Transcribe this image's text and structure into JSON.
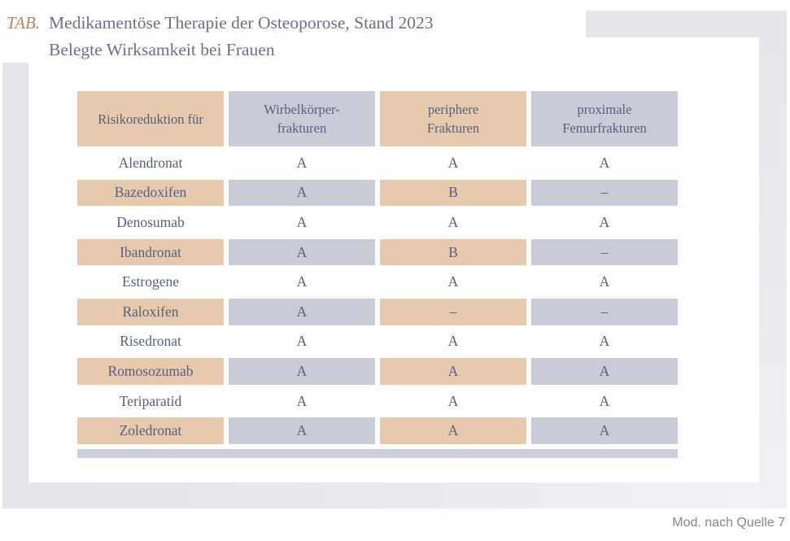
{
  "title": {
    "tag": "TAB.",
    "line1": "Medikamentöse Therapie der Osteoporose, Stand 2023",
    "line2": "Belegte Wirksamkeit bei Frauen"
  },
  "table": {
    "columns": [
      {
        "lines": [
          "Risikoreduktion für"
        ]
      },
      {
        "lines": [
          "Wirbelkörper-",
          "frakturen"
        ]
      },
      {
        "lines": [
          "periphere",
          "Frakturen"
        ]
      },
      {
        "lines": [
          "proximale",
          "Femurfrakturen"
        ]
      }
    ],
    "rows": [
      {
        "name": "Alendronat",
        "values": [
          "A",
          "A",
          "A"
        ]
      },
      {
        "name": "Bazedoxifen",
        "values": [
          "A",
          "B",
          "–"
        ]
      },
      {
        "name": "Denosumab",
        "values": [
          "A",
          "A",
          "A"
        ]
      },
      {
        "name": "Ibandronat",
        "values": [
          "A",
          "B",
          "–"
        ]
      },
      {
        "name": "Estrogene",
        "values": [
          "A",
          "A",
          "A"
        ]
      },
      {
        "name": "Raloxifen",
        "values": [
          "A",
          "–",
          "–"
        ]
      },
      {
        "name": "Risedronat",
        "values": [
          "A",
          "A",
          "A"
        ]
      },
      {
        "name": "Romosozumab",
        "values": [
          "A",
          "A",
          "A"
        ]
      },
      {
        "name": "Teriparatid",
        "values": [
          "A",
          "A",
          "A"
        ]
      },
      {
        "name": "Zoledronat",
        "values": [
          "A",
          "A",
          "A"
        ]
      }
    ]
  },
  "footer": {
    "note": "Mod. nach Quelle 7"
  },
  "colors": {
    "tan": "#e7c9ad",
    "lavender": "#c9cbd7",
    "strip": "#ccced9",
    "table-text": "#566180",
    "title-text": "#6a7188",
    "tag-color": "#bd8266",
    "footer-text": "#86868b"
  }
}
